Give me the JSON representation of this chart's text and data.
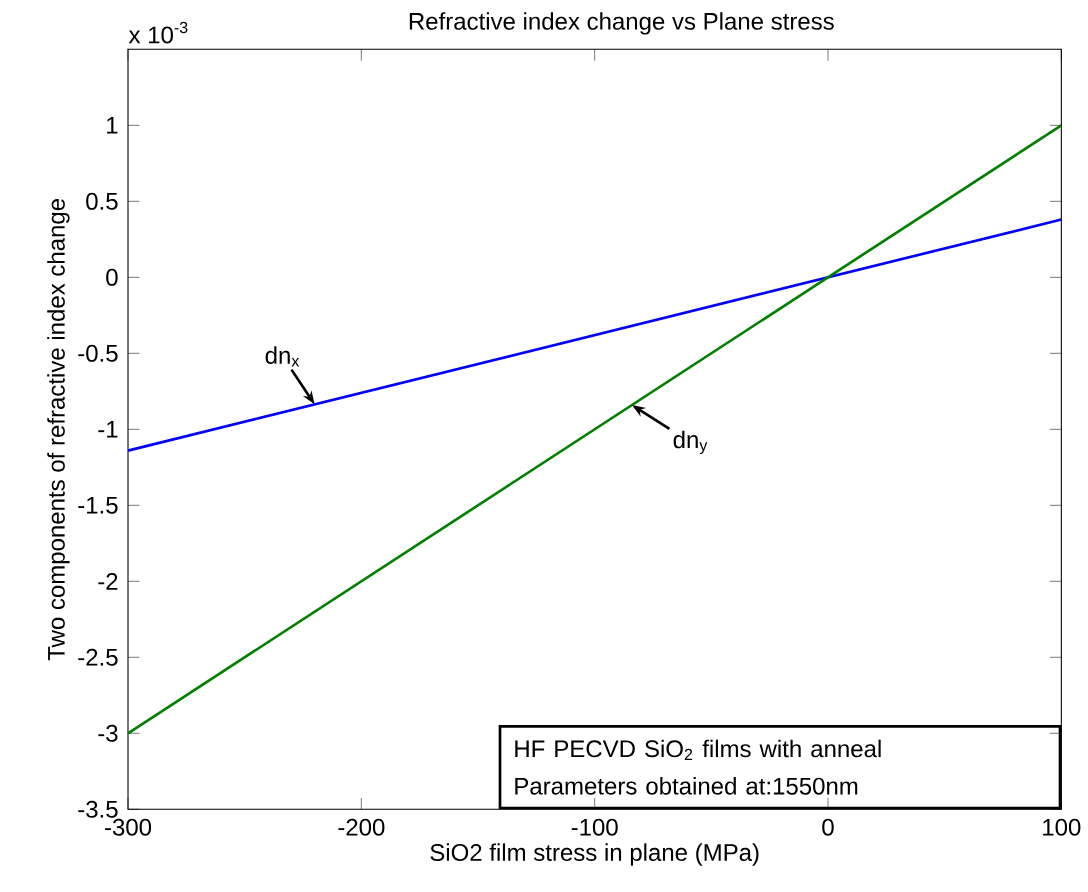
{
  "chart_data": {
    "type": "line",
    "title": "Refractive index change vs Plane stress",
    "xlabel": "SiO2 film stress in plane (MPa)",
    "ylabel": "Two components of refractive index change",
    "annotations": [
      "x 10$^{-3}$",
      "HF PECVD SiO$_{2}$ films with anneal",
      "Parameters obtained at:1550nm"
    ],
    "x": [
      -300,
      100
    ],
    "series": [
      {
        "name": "dn$_{x}$",
        "color": "#0000ff",
        "values": [
          -1.14,
          0.38
        ]
      },
      {
        "name": "dn$_{y}$",
        "color": "#008000",
        "values": [
          -3.0,
          1.0
        ]
      }
    ],
    "xlim": [
      -300,
      100
    ],
    "ylim": [
      -3.5,
      1.5
    ],
    "xticks": [
      -300,
      -200,
      -100,
      0,
      100
    ],
    "yticks": [
      -3.5,
      -3,
      -2.5,
      -2,
      -1.5,
      -1,
      -0.5,
      0,
      0.5,
      1
    ],
    "grid": false,
    "legend": false,
    "marker": "none",
    "line_style": "solid"
  }
}
